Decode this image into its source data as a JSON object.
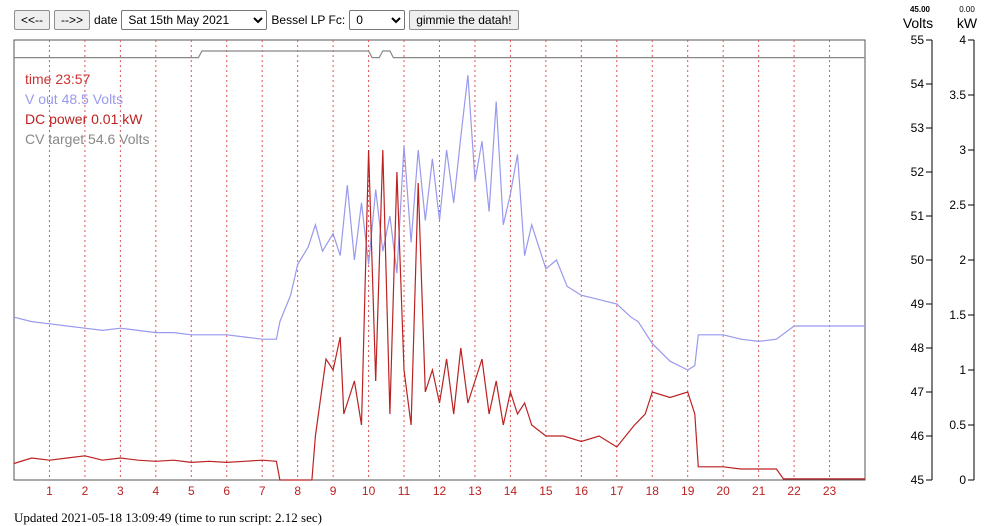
{
  "toolbar": {
    "prev_label": "<<--",
    "next_label": "-->>",
    "date_label": "date",
    "date_value": "Sat 15th May 2021",
    "bessel_label": "Bessel LP Fc:",
    "bessel_value": "0",
    "fetch_label": "gimmie the datah!"
  },
  "readout": {
    "volts_value": "45.00",
    "volts_unit": "Volts",
    "kw_value": "0.00",
    "kw_unit": "kW"
  },
  "footer": {
    "text": "Updated 2021-05-18 13:09:49   (time to run script: 2.12 sec)"
  },
  "colors": {
    "voltage": "#9999ee",
    "power": "#bb2222",
    "cv_target": "#888888",
    "time_text": "#cc3333",
    "grid": "#dd5555"
  },
  "chart_data": {
    "type": "line",
    "legend": {
      "time": "time 23:57",
      "voltage": "V out 48.5 Volts",
      "power": "DC power 0.01 kW",
      "cv_target": "CV target 54.6 Volts"
    },
    "x_range": [
      0,
      24
    ],
    "x_ticks": [
      1,
      2,
      3,
      4,
      5,
      6,
      7,
      8,
      9,
      10,
      11,
      12,
      13,
      14,
      15,
      16,
      17,
      18,
      19,
      20,
      21,
      22,
      23
    ],
    "y_left": {
      "unit": "Volts",
      "range": [
        45,
        55
      ],
      "ticks": [
        45,
        46,
        47,
        48,
        49,
        50,
        51,
        52,
        53,
        54,
        55
      ]
    },
    "y_right": {
      "unit": "kW",
      "range": [
        0,
        4
      ],
      "ticks": [
        0,
        0.5,
        1,
        1.5,
        2,
        2.5,
        3,
        3.5,
        4
      ]
    },
    "series": [
      {
        "name": "V out",
        "axis": "left",
        "points": [
          [
            0,
            48.7
          ],
          [
            0.5,
            48.6
          ],
          [
            1,
            48.55
          ],
          [
            1.5,
            48.5
          ],
          [
            2,
            48.45
          ],
          [
            2.5,
            48.4
          ],
          [
            3,
            48.45
          ],
          [
            3.5,
            48.4
          ],
          [
            4,
            48.35
          ],
          [
            4.5,
            48.35
          ],
          [
            5,
            48.3
          ],
          [
            5.5,
            48.3
          ],
          [
            6,
            48.3
          ],
          [
            6.5,
            48.25
          ],
          [
            7,
            48.2
          ],
          [
            7.4,
            48.2
          ],
          [
            7.5,
            48.6
          ],
          [
            7.8,
            49.2
          ],
          [
            8,
            49.9
          ],
          [
            8.3,
            50.3
          ],
          [
            8.5,
            50.8
          ],
          [
            8.7,
            50.2
          ],
          [
            9,
            50.6
          ],
          [
            9.2,
            50.1
          ],
          [
            9.4,
            51.7
          ],
          [
            9.6,
            50.0
          ],
          [
            9.8,
            51.3
          ],
          [
            10,
            49.9
          ],
          [
            10.2,
            51.6
          ],
          [
            10.4,
            50.2
          ],
          [
            10.6,
            51.0
          ],
          [
            10.8,
            49.7
          ],
          [
            11,
            52.6
          ],
          [
            11.2,
            50.4
          ],
          [
            11.4,
            52.5
          ],
          [
            11.6,
            50.9
          ],
          [
            11.8,
            52.3
          ],
          [
            12,
            50.9
          ],
          [
            12.2,
            52.5
          ],
          [
            12.4,
            51.3
          ],
          [
            12.6,
            52.8
          ],
          [
            12.8,
            54.2
          ],
          [
            13,
            51.8
          ],
          [
            13.2,
            52.7
          ],
          [
            13.4,
            51.1
          ],
          [
            13.6,
            53.6
          ],
          [
            13.8,
            50.8
          ],
          [
            14,
            51.5
          ],
          [
            14.2,
            52.4
          ],
          [
            14.4,
            50.1
          ],
          [
            14.6,
            50.8
          ],
          [
            15,
            49.8
          ],
          [
            15.3,
            50.0
          ],
          [
            15.6,
            49.4
          ],
          [
            16,
            49.2
          ],
          [
            16.5,
            49.1
          ],
          [
            17,
            49.0
          ],
          [
            17.4,
            48.7
          ],
          [
            17.6,
            48.6
          ],
          [
            18,
            48.1
          ],
          [
            18.5,
            47.7
          ],
          [
            19,
            47.5
          ],
          [
            19.2,
            47.6
          ],
          [
            19.3,
            48.3
          ],
          [
            19.5,
            48.3
          ],
          [
            20,
            48.3
          ],
          [
            20.5,
            48.2
          ],
          [
            21,
            48.15
          ],
          [
            21.5,
            48.2
          ],
          [
            22,
            48.5
          ],
          [
            23,
            48.5
          ],
          [
            24,
            48.5
          ]
        ]
      },
      {
        "name": "DC power",
        "axis": "right",
        "points": [
          [
            0,
            0.15
          ],
          [
            0.5,
            0.2
          ],
          [
            1,
            0.18
          ],
          [
            1.5,
            0.2
          ],
          [
            2,
            0.22
          ],
          [
            2.5,
            0.18
          ],
          [
            3,
            0.2
          ],
          [
            3.5,
            0.18
          ],
          [
            4,
            0.17
          ],
          [
            4.5,
            0.18
          ],
          [
            5,
            0.16
          ],
          [
            5.5,
            0.17
          ],
          [
            6,
            0.16
          ],
          [
            6.5,
            0.17
          ],
          [
            7,
            0.18
          ],
          [
            7.4,
            0.17
          ],
          [
            7.5,
            0.0
          ],
          [
            8.4,
            0.0
          ],
          [
            8.5,
            0.4
          ],
          [
            8.8,
            1.1
          ],
          [
            9.0,
            1.0
          ],
          [
            9.2,
            1.3
          ],
          [
            9.3,
            0.6
          ],
          [
            9.6,
            0.9
          ],
          [
            9.8,
            0.5
          ],
          [
            10.0,
            3.0
          ],
          [
            10.2,
            0.9
          ],
          [
            10.4,
            3.0
          ],
          [
            10.6,
            0.6
          ],
          [
            10.8,
            2.8
          ],
          [
            11.0,
            1.0
          ],
          [
            11.2,
            0.5
          ],
          [
            11.4,
            2.7
          ],
          [
            11.6,
            0.8
          ],
          [
            11.8,
            1.0
          ],
          [
            12.0,
            0.7
          ],
          [
            12.2,
            1.1
          ],
          [
            12.4,
            0.6
          ],
          [
            12.6,
            1.2
          ],
          [
            12.8,
            0.7
          ],
          [
            13.0,
            0.9
          ],
          [
            13.2,
            1.1
          ],
          [
            13.4,
            0.6
          ],
          [
            13.6,
            0.9
          ],
          [
            13.8,
            0.5
          ],
          [
            14.0,
            0.8
          ],
          [
            14.2,
            0.6
          ],
          [
            14.4,
            0.7
          ],
          [
            14.6,
            0.5
          ],
          [
            15.0,
            0.4
          ],
          [
            15.5,
            0.4
          ],
          [
            16.0,
            0.35
          ],
          [
            16.5,
            0.4
          ],
          [
            17.0,
            0.3
          ],
          [
            17.5,
            0.5
          ],
          [
            17.8,
            0.6
          ],
          [
            18.0,
            0.8
          ],
          [
            18.5,
            0.75
          ],
          [
            19.0,
            0.8
          ],
          [
            19.2,
            0.6
          ],
          [
            19.3,
            0.12
          ],
          [
            20,
            0.12
          ],
          [
            20.5,
            0.1
          ],
          [
            21,
            0.1
          ],
          [
            21.5,
            0.1
          ],
          [
            21.7,
            0.01
          ],
          [
            22,
            0.01
          ],
          [
            24,
            0.01
          ]
        ]
      },
      {
        "name": "CV target",
        "axis": "left",
        "points": [
          [
            0,
            54.6
          ],
          [
            5.2,
            54.6
          ],
          [
            5.3,
            54.75
          ],
          [
            10.0,
            54.75
          ],
          [
            10.1,
            54.6
          ],
          [
            10.3,
            54.6
          ],
          [
            10.4,
            54.75
          ],
          [
            10.6,
            54.75
          ],
          [
            10.7,
            54.6
          ],
          [
            24,
            54.6
          ]
        ]
      }
    ]
  }
}
